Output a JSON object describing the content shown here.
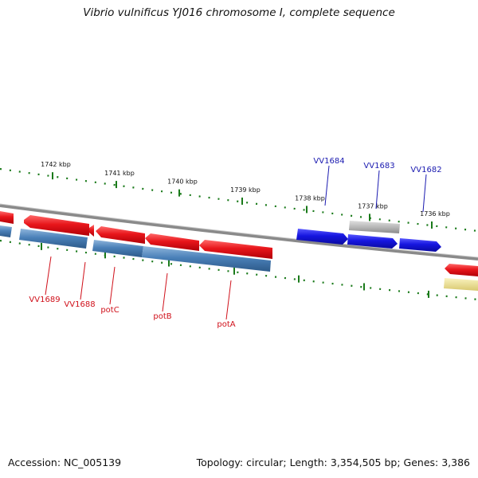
{
  "title": "Vibrio vulnificus YJ016 chromosome I, complete sequence",
  "footer": {
    "accession": "Accession: NC_005139",
    "topology": "Topology: circular; Length: 3,354,505 bp; Genes: 3,386"
  },
  "colors": {
    "backbone": "#8a8a8a",
    "tick": "#1a7a1a",
    "red_gene": "#e8161b",
    "blue_cds": "#4a80b8",
    "blue_gene": "#1616e0",
    "grey_gene": "#bdbdbd",
    "yellow": "#f2e8a0",
    "red_label": "#d0101a",
    "blue_label": "#1a1ab0"
  },
  "ticks": [
    "1742 kbp",
    "1741 kbp",
    "1740 kbp",
    "1739 kbp",
    "1738 kbp",
    "1737 kbp",
    "1736 kbp"
  ],
  "gene_labels": {
    "below": [
      "VV1689",
      "VV1688",
      "potC",
      "potB",
      "potA"
    ],
    "above": [
      "VV1684",
      "VV1683",
      "VV1682"
    ]
  }
}
